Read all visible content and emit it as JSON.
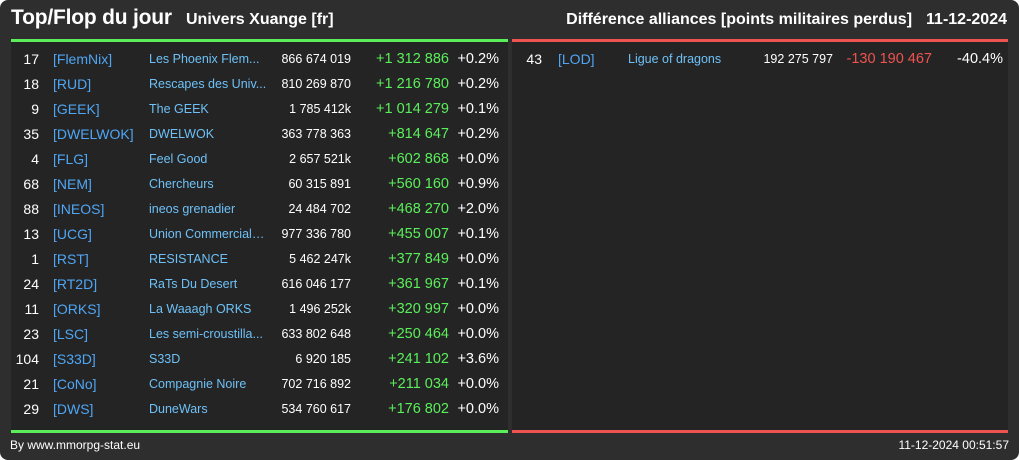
{
  "header": {
    "title": "Top/Flop du jour",
    "subtitle": "Univers Xuange [fr]",
    "section_title": "Différence alliances [points militaires perdus]",
    "date": "11-12-2024"
  },
  "colors": {
    "background": "#2e2e2e",
    "panel": "#242424",
    "top_accent": "#5aef5a",
    "flop_accent": "#ef5350",
    "tag_color": "#4fa6f5",
    "name_color": "#6ec1f7"
  },
  "top": [
    {
      "rank": "17",
      "tag": "[FlemNix]",
      "name": "Les Phoenix Flem...",
      "points": "866 674 019",
      "delta": "+1 312 886",
      "pct": "+0.2%"
    },
    {
      "rank": "18",
      "tag": "[RUD]",
      "name": "Rescapes des Univ...",
      "points": "810 269 870",
      "delta": "+1 216 780",
      "pct": "+0.2%"
    },
    {
      "rank": "9",
      "tag": "[GEEK]",
      "name": "The GEEK",
      "points": "1 785 412k",
      "delta": "+1 014 279",
      "pct": "+0.1%"
    },
    {
      "rank": "35",
      "tag": "[DWELWOK]",
      "name": "DWELWOK",
      "points": "363 778 363",
      "delta": "+814 647",
      "pct": "+0.2%"
    },
    {
      "rank": "4",
      "tag": "[FLG]",
      "name": "Feel Good",
      "points": "2 657 521k",
      "delta": "+602 868",
      "pct": "+0.0%"
    },
    {
      "rank": "68",
      "tag": "[NEM]",
      "name": "Chercheurs",
      "points": "60 315 891",
      "delta": "+560 160",
      "pct": "+0.9%"
    },
    {
      "rank": "88",
      "tag": "[INEOS]",
      "name": "ineos grenadier",
      "points": "24 484 702",
      "delta": "+468 270",
      "pct": "+2.0%"
    },
    {
      "rank": "13",
      "tag": "[UCG]",
      "name": "Union Commerciale...",
      "points": "977 336 780",
      "delta": "+455 007",
      "pct": "+0.1%"
    },
    {
      "rank": "1",
      "tag": "[RST]",
      "name": "RESISTANCE",
      "points": "5 462 247k",
      "delta": "+377 849",
      "pct": "+0.0%"
    },
    {
      "rank": "24",
      "tag": "[RT2D]",
      "name": "RaTs Du Desert",
      "points": "616 046 177",
      "delta": "+361 967",
      "pct": "+0.1%"
    },
    {
      "rank": "11",
      "tag": "[ORKS]",
      "name": "La Waaagh ORKS",
      "points": "1 496 252k",
      "delta": "+320 997",
      "pct": "+0.0%"
    },
    {
      "rank": "23",
      "tag": "[LSC]",
      "name": "Les semi-croustilla...",
      "points": "633 802 648",
      "delta": "+250 464",
      "pct": "+0.0%"
    },
    {
      "rank": "104",
      "tag": "[S33D]",
      "name": "S33D",
      "points": "6 920 185",
      "delta": "+241 102",
      "pct": "+3.6%"
    },
    {
      "rank": "21",
      "tag": "[CoNo]",
      "name": "Compagnie Noire",
      "points": "702 716 892",
      "delta": "+211 034",
      "pct": "+0.0%"
    },
    {
      "rank": "29",
      "tag": "[DWS]",
      "name": "DuneWars",
      "points": "534 760 617",
      "delta": "+176 802",
      "pct": "+0.0%"
    }
  ],
  "flop": [
    {
      "rank": "43",
      "tag": "[LOD]",
      "name": "Ligue of dragons",
      "points": "192 275 797",
      "delta": "-130 190 467",
      "pct": "-40.4%"
    }
  ],
  "footer": {
    "source": "By www.mmorpg-stat.eu",
    "timestamp": "11-12-2024 00:51:57"
  }
}
